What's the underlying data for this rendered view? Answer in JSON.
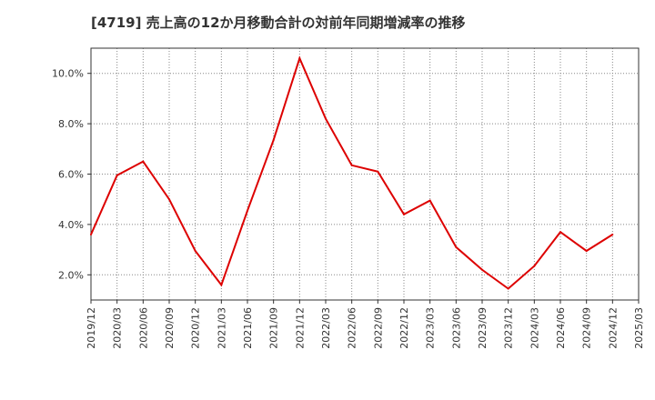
{
  "chart_data": {
    "type": "line",
    "title": "[4719]  売上高の12か月移動合計の対前年同期増減率の推移",
    "xlabel": "",
    "ylabel": "",
    "categories": [
      "2019/12",
      "2020/03",
      "2020/06",
      "2020/09",
      "2020/12",
      "2021/03",
      "2021/06",
      "2021/09",
      "2021/12",
      "2022/03",
      "2022/06",
      "2022/09",
      "2022/12",
      "2023/03",
      "2023/06",
      "2023/09",
      "2023/12",
      "2024/03",
      "2024/06",
      "2024/09",
      "2024/12",
      "2025/03"
    ],
    "ylim": [
      1.0,
      11.0
    ],
    "yticks": [
      2.0,
      4.0,
      6.0,
      8.0,
      10.0
    ],
    "ytick_labels": [
      "2.0%",
      "4.0%",
      "6.0%",
      "8.0%",
      "10.0%"
    ],
    "grid": true,
    "series": [
      {
        "name": "対前年同期増減率",
        "color": "#dd0000",
        "values": [
          3.6,
          5.95,
          6.5,
          5.0,
          2.95,
          1.6,
          4.55,
          7.35,
          10.6,
          8.2,
          6.35,
          6.1,
          4.4,
          4.95,
          3.1,
          2.2,
          1.45,
          2.35,
          3.7,
          2.95,
          3.6,
          null
        ]
      }
    ]
  }
}
